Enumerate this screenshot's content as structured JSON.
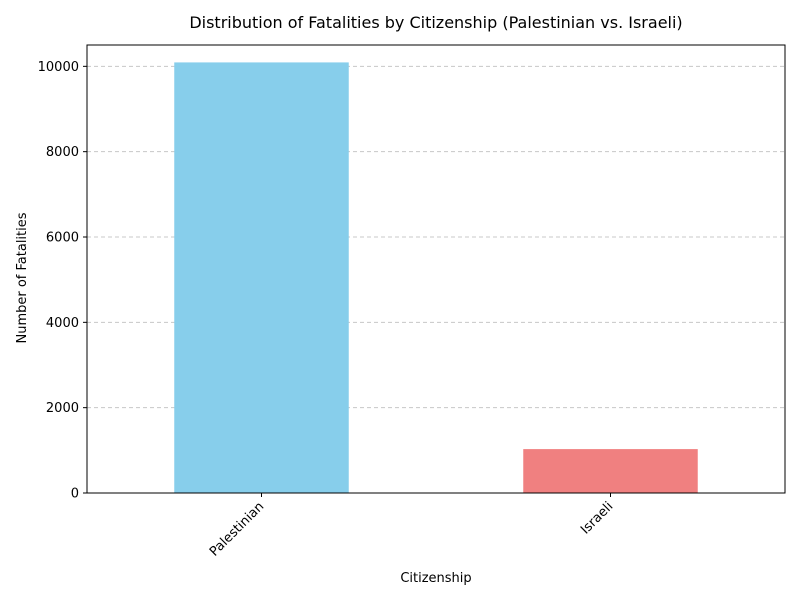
{
  "chart_data": {
    "type": "bar",
    "title": "Distribution of Fatalities by Citizenship (Palestinian vs. Israeli)",
    "xlabel": "Citizenship",
    "ylabel": "Number of Fatalities",
    "categories": [
      "Palestinian",
      "Israeli"
    ],
    "values": [
      10092,
      1029
    ],
    "colors": [
      "#87ceeb",
      "#f08080"
    ],
    "ylim": [
      0,
      10500
    ],
    "yticks": [
      0,
      2000,
      4000,
      6000,
      8000,
      10000
    ],
    "ytick_labels": [
      "0",
      "2000",
      "4000",
      "6000",
      "8000",
      "10000"
    ],
    "grid": "y-dashed",
    "grid_color": "#c8c8c8",
    "xtick_rotation": 45
  }
}
